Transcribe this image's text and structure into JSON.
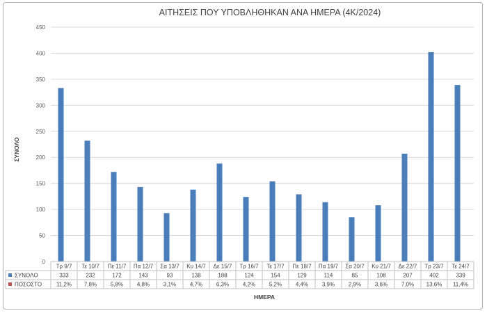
{
  "chart_data": {
    "type": "bar",
    "title": "ΑΙΤΗΣΕΙΣ ΠΟΥ ΥΠΟΒΛΗΘΗΚΑΝ ΑΝΑ ΗΜΕΡΑ (4Κ/2024)",
    "xlabel": "ΗΜΕΡΑ",
    "ylabel": "ΣΥΝΟΛΟ",
    "ylim": [
      0,
      450
    ],
    "yticks": [
      "0",
      "50",
      "100",
      "150",
      "200",
      "250",
      "300",
      "350",
      "400",
      "450"
    ],
    "grid": true,
    "legend": "data-table",
    "categories": [
      "Τρ 9/7",
      "Τε 10/7",
      "Πε 11/7",
      "Πα 12/7",
      "Σα 13/7",
      "Κυ 14/7",
      "Δε 15/7",
      "Τρ 16/7",
      "Τε 17/7",
      "Πε 18/7",
      "Πα 19/7",
      "Σα 20/7",
      "Κυ 21/7",
      "Δε 22/7",
      "Τρ 23/7",
      "Τε 24/7"
    ],
    "series": [
      {
        "name": "ΣΥΝΟΛΟ",
        "color": "#4a7ebb",
        "values": [
          333,
          232,
          172,
          143,
          93,
          138,
          188,
          124,
          154,
          129,
          114,
          85,
          108,
          207,
          402,
          339
        ]
      },
      {
        "name": "ΠΟΣΟΣΤΟ",
        "color": "#c0504d",
        "values": [
          0.112,
          0.078,
          0.058,
          0.048,
          0.031,
          0.047,
          0.063,
          0.042,
          0.052,
          0.044,
          0.039,
          0.029,
          0.036,
          0.07,
          0.136,
          0.114
        ],
        "labels": [
          "11,2%",
          "7,8%",
          "5,8%",
          "4,8%",
          "3,1%",
          "4,7%",
          "6,3%",
          "4,2%",
          "5,2%",
          "4,4%",
          "3,9%",
          "2,9%",
          "3,6%",
          "7,0%",
          "13,6%",
          "11,4%"
        ]
      }
    ]
  }
}
